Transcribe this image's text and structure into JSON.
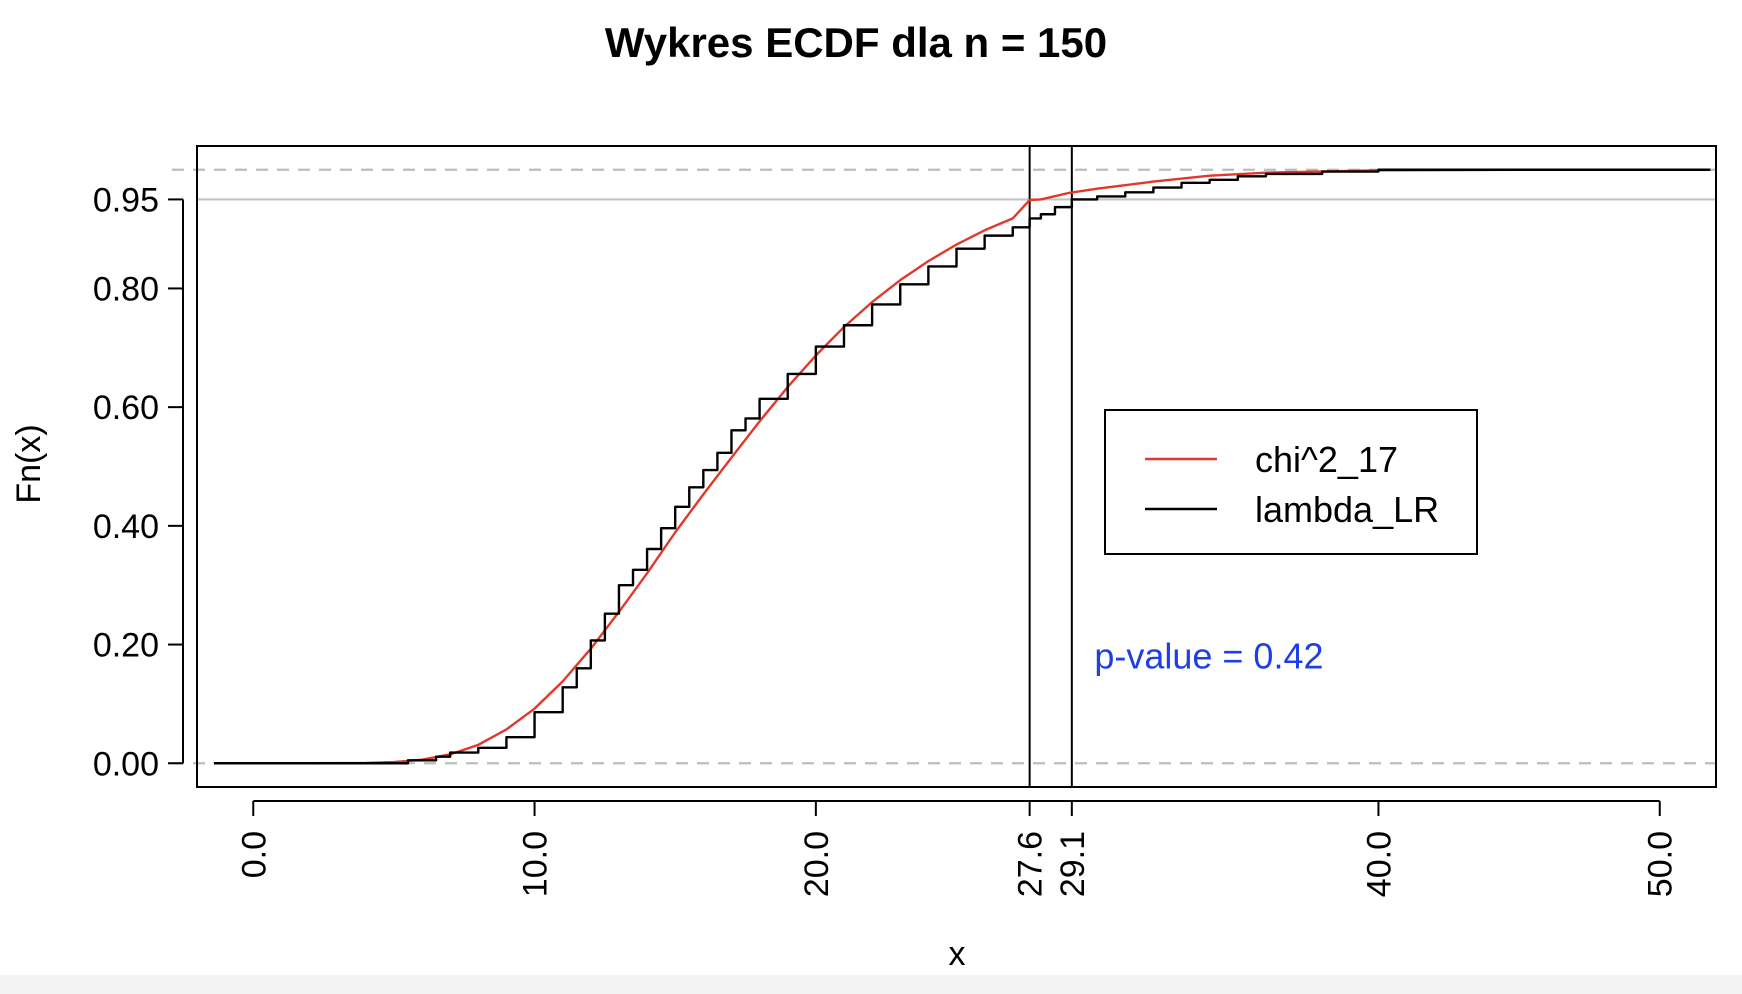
{
  "chart_data": {
    "type": "line",
    "title": "Wykres ECDF dla n = 150",
    "xlabel": "x",
    "ylabel": "Fn(x)",
    "xlim": [
      -2,
      52
    ],
    "ylim": [
      -0.04,
      1.04
    ],
    "x_ticks": [
      "0.0",
      "10.0",
      "20.0",
      "27.6",
      "29.1",
      "40.0",
      "50.0"
    ],
    "x_tick_values": [
      0,
      10,
      20,
      27.6,
      29.1,
      40,
      50
    ],
    "y_ticks": [
      "0.00",
      "0.20",
      "0.40",
      "0.60",
      "0.80",
      "0.95"
    ],
    "y_tick_values": [
      0,
      0.2,
      0.4,
      0.6,
      0.8,
      0.95
    ],
    "hlines": {
      "dashed": [
        0,
        1
      ],
      "solid": [
        0.95
      ]
    },
    "vlines": [
      27.6,
      29.1
    ],
    "series": [
      {
        "name": "chi^2_17",
        "color": "#e0392b",
        "x": [
          0,
          2,
          4,
          5,
          6,
          7,
          8,
          9,
          10,
          11,
          12,
          13,
          14,
          15,
          16,
          17,
          18,
          19,
          20,
          21,
          22,
          23,
          24,
          25,
          26,
          27,
          27.6,
          28,
          29,
          30,
          32,
          34,
          36,
          40,
          45,
          50
        ],
        "y": [
          0,
          0,
          0.0005,
          0.002,
          0.006,
          0.015,
          0.031,
          0.057,
          0.092,
          0.138,
          0.193,
          0.255,
          0.32,
          0.389,
          0.453,
          0.515,
          0.576,
          0.634,
          0.687,
          0.735,
          0.777,
          0.814,
          0.846,
          0.874,
          0.898,
          0.918,
          0.949,
          0.95,
          0.961,
          0.968,
          0.98,
          0.99,
          0.995,
          0.999,
          1.0,
          1.0
        ]
      },
      {
        "name": "lambda_LR",
        "color": "#000000",
        "x": [
          -1.4,
          0,
          4.5,
          5.5,
          6.5,
          7,
          8,
          9,
          10,
          11,
          11.5,
          12,
          12.5,
          13,
          13.5,
          14,
          14.5,
          15,
          15.5,
          16,
          16.5,
          17,
          17.5,
          18,
          19,
          20,
          21,
          22,
          23,
          24,
          25,
          26,
          27,
          27.6,
          28,
          28.5,
          29.1,
          30,
          31,
          32,
          33,
          34,
          35,
          36,
          38,
          40,
          45,
          50,
          51.8
        ],
        "y": [
          0,
          0,
          0.0,
          0.005,
          0.011,
          0.018,
          0.026,
          0.044,
          0.086,
          0.128,
          0.16,
          0.207,
          0.252,
          0.3,
          0.326,
          0.361,
          0.396,
          0.432,
          0.465,
          0.494,
          0.523,
          0.561,
          0.581,
          0.614,
          0.656,
          0.702,
          0.738,
          0.773,
          0.807,
          0.837,
          0.867,
          0.889,
          0.903,
          0.918,
          0.925,
          0.937,
          0.95,
          0.955,
          0.962,
          0.97,
          0.978,
          0.983,
          0.989,
          0.993,
          0.997,
          1.0,
          1.0,
          1.0,
          1.0
        ]
      }
    ],
    "legend": {
      "position": "right",
      "entries": [
        {
          "label": "chi^2_17",
          "color": "#e0392b"
        },
        {
          "label": "lambda_LR",
          "color": "#000000"
        }
      ]
    },
    "annotation": {
      "text": "p-value = 0.42",
      "color": "#1f3fe6",
      "x": 29.9,
      "y": 0.16
    }
  }
}
